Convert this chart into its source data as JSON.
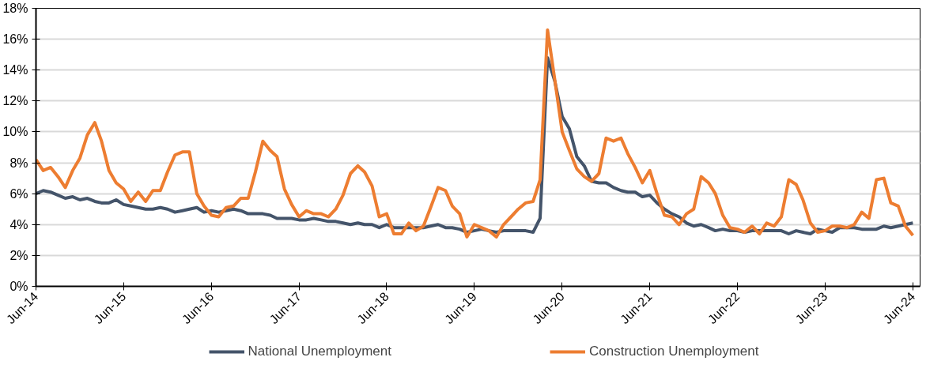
{
  "chart_data": {
    "type": "line",
    "x": [
      "2014-06",
      "2014-07",
      "2014-08",
      "2014-09",
      "2014-10",
      "2014-11",
      "2014-12",
      "2015-01",
      "2015-02",
      "2015-03",
      "2015-04",
      "2015-05",
      "2015-06",
      "2015-07",
      "2015-08",
      "2015-09",
      "2015-10",
      "2015-11",
      "2015-12",
      "2016-01",
      "2016-02",
      "2016-03",
      "2016-04",
      "2016-05",
      "2016-06",
      "2016-07",
      "2016-08",
      "2016-09",
      "2016-10",
      "2016-11",
      "2016-12",
      "2017-01",
      "2017-02",
      "2017-03",
      "2017-04",
      "2017-05",
      "2017-06",
      "2017-07",
      "2017-08",
      "2017-09",
      "2017-10",
      "2017-11",
      "2017-12",
      "2018-01",
      "2018-02",
      "2018-03",
      "2018-04",
      "2018-05",
      "2018-06",
      "2018-07",
      "2018-08",
      "2018-09",
      "2018-10",
      "2018-11",
      "2018-12",
      "2019-01",
      "2019-02",
      "2019-03",
      "2019-04",
      "2019-05",
      "2019-06",
      "2019-07",
      "2019-08",
      "2019-09",
      "2019-10",
      "2019-11",
      "2019-12",
      "2020-01",
      "2020-02",
      "2020-03",
      "2020-04",
      "2020-05",
      "2020-06",
      "2020-07",
      "2020-08",
      "2020-09",
      "2020-10",
      "2020-11",
      "2020-12",
      "2021-01",
      "2021-02",
      "2021-03",
      "2021-04",
      "2021-05",
      "2021-06",
      "2021-07",
      "2021-08",
      "2021-09",
      "2021-10",
      "2021-11",
      "2021-12",
      "2022-01",
      "2022-02",
      "2022-03",
      "2022-04",
      "2022-05",
      "2022-06",
      "2022-07",
      "2022-08",
      "2022-09",
      "2022-10",
      "2022-11",
      "2022-12",
      "2023-01",
      "2023-02",
      "2023-03",
      "2023-04",
      "2023-05",
      "2023-06",
      "2023-07",
      "2023-08",
      "2023-09",
      "2023-10",
      "2023-11",
      "2023-12",
      "2024-01",
      "2024-02",
      "2024-03",
      "2024-04",
      "2024-05",
      "2024-06"
    ],
    "series": [
      {
        "name": "National Unemployment",
        "color": "#44546a",
        "values": [
          6.0,
          6.2,
          6.1,
          5.9,
          5.7,
          5.8,
          5.6,
          5.7,
          5.5,
          5.4,
          5.4,
          5.6,
          5.3,
          5.2,
          5.1,
          5.0,
          5.0,
          5.1,
          5.0,
          4.8,
          4.9,
          5.0,
          5.1,
          4.8,
          4.9,
          4.8,
          4.9,
          5.0,
          4.9,
          4.7,
          4.7,
          4.7,
          4.6,
          4.4,
          4.4,
          4.4,
          4.3,
          4.3,
          4.4,
          4.3,
          4.2,
          4.2,
          4.1,
          4.0,
          4.1,
          4.0,
          4.0,
          3.8,
          4.0,
          3.8,
          3.8,
          3.8,
          3.8,
          3.8,
          3.9,
          4.0,
          3.8,
          3.8,
          3.7,
          3.5,
          3.6,
          3.7,
          3.6,
          3.5,
          3.6,
          3.6,
          3.6,
          3.6,
          3.5,
          4.4,
          14.8,
          13.3,
          11.0,
          10.2,
          8.4,
          7.8,
          6.8,
          6.7,
          6.7,
          6.4,
          6.2,
          6.1,
          6.1,
          5.8,
          5.9,
          5.4,
          5.0,
          4.7,
          4.5,
          4.1,
          3.9,
          4.0,
          3.8,
          3.6,
          3.7,
          3.6,
          3.6,
          3.5,
          3.6,
          3.6,
          3.6,
          3.6,
          3.6,
          3.4,
          3.6,
          3.5,
          3.4,
          3.7,
          3.6,
          3.5,
          3.8,
          3.8,
          3.8,
          3.7,
          3.7,
          3.7,
          3.9,
          3.8,
          3.9,
          4.0,
          4.1
        ]
      },
      {
        "name": "Construction Unemployment",
        "color": "#ed7d31",
        "values": [
          8.2,
          7.5,
          7.7,
          7.1,
          6.4,
          7.5,
          8.3,
          9.8,
          10.6,
          9.4,
          7.5,
          6.7,
          6.3,
          5.5,
          6.1,
          5.5,
          6.2,
          6.2,
          7.4,
          8.5,
          8.7,
          8.7,
          6.0,
          5.2,
          4.6,
          4.5,
          5.1,
          5.2,
          5.7,
          5.7,
          7.4,
          9.4,
          8.8,
          8.4,
          6.3,
          5.3,
          4.5,
          4.9,
          4.7,
          4.7,
          4.5,
          5.0,
          5.9,
          7.3,
          7.8,
          7.4,
          6.5,
          4.5,
          4.7,
          3.4,
          3.4,
          4.1,
          3.6,
          3.9,
          5.1,
          6.4,
          6.2,
          5.2,
          4.7,
          3.2,
          4.0,
          3.8,
          3.6,
          3.2,
          4.0,
          4.5,
          5.0,
          5.4,
          5.5,
          6.9,
          16.6,
          13.4,
          10.0,
          8.8,
          7.6,
          7.1,
          6.8,
          7.3,
          9.6,
          9.4,
          9.6,
          8.6,
          7.7,
          6.7,
          7.5,
          6.0,
          4.6,
          4.5,
          4.0,
          4.7,
          5.0,
          7.1,
          6.7,
          6.0,
          4.6,
          3.8,
          3.7,
          3.5,
          3.9,
          3.4,
          4.1,
          3.9,
          4.5,
          6.9,
          6.6,
          5.6,
          4.1,
          3.5,
          3.6,
          3.9,
          3.9,
          3.8,
          4.0,
          4.8,
          4.4,
          6.9,
          7.0,
          5.4,
          5.2,
          3.9,
          3.3
        ]
      }
    ],
    "xlim": [
      "2014-06",
      "2024-07"
    ],
    "xticks": [
      {
        "value": "2014-06",
        "label": "Jun-14"
      },
      {
        "value": "2015-06",
        "label": "Jun-15"
      },
      {
        "value": "2016-06",
        "label": "Jun-16"
      },
      {
        "value": "2017-06",
        "label": "Jun-17"
      },
      {
        "value": "2018-06",
        "label": "Jun-18"
      },
      {
        "value": "2019-06",
        "label": "Jun-19"
      },
      {
        "value": "2020-06",
        "label": "Jun-20"
      },
      {
        "value": "2021-06",
        "label": "Jun-21"
      },
      {
        "value": "2022-06",
        "label": "Jun-22"
      },
      {
        "value": "2023-06",
        "label": "Jun-23"
      },
      {
        "value": "2024-06",
        "label": "Jun-24"
      }
    ],
    "ylim": [
      0,
      18
    ],
    "yticks": [
      {
        "value": 0,
        "label": "0%"
      },
      {
        "value": 2,
        "label": "2%"
      },
      {
        "value": 4,
        "label": "4%"
      },
      {
        "value": 6,
        "label": "6%"
      },
      {
        "value": 8,
        "label": "8%"
      },
      {
        "value": 10,
        "label": "10%"
      },
      {
        "value": 12,
        "label": "12%"
      },
      {
        "value": 14,
        "label": "14%"
      },
      {
        "value": 16,
        "label": "16%"
      },
      {
        "value": 18,
        "label": "18%"
      }
    ],
    "grid": "y",
    "legend": "bottom",
    "marker": "none",
    "line_style": "solid"
  }
}
